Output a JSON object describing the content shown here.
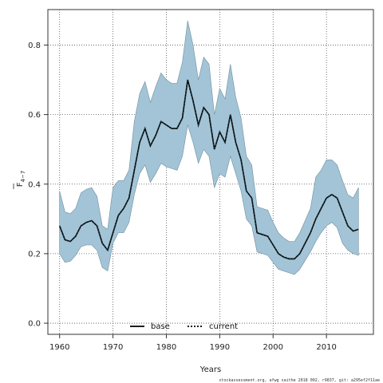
{
  "chart_data": {
    "type": "area",
    "xlabel": "Years",
    "ylabel": "F̄4−7",
    "ylabel_main": "F",
    "ylabel_sub": "4−7",
    "xlim": [
      1957.8,
      2018.8
    ],
    "ylim": [
      -0.032,
      0.902
    ],
    "xticks": [
      1960,
      1970,
      1980,
      1990,
      2000,
      2010
    ],
    "yticks": [
      0.0,
      0.2,
      0.4,
      0.6,
      0.8
    ],
    "ytick_labels": [
      "0.0",
      "0.2",
      "0.4",
      "0.6",
      "0.8"
    ],
    "grid": true,
    "legend_position": "bottom-center",
    "footer": "stockassessment.org, afwg saithe 2018 002, r9837, git: a295ef2f11ae",
    "colors": {
      "band": "#a2c4d6",
      "band_edge": "#6f8f9f",
      "line": "#000000"
    },
    "x": [
      1960,
      1961,
      1962,
      1963,
      1964,
      1965,
      1966,
      1967,
      1968,
      1969,
      1970,
      1971,
      1972,
      1973,
      1974,
      1975,
      1976,
      1977,
      1978,
      1979,
      1980,
      1981,
      1982,
      1983,
      1984,
      1985,
      1986,
      1987,
      1988,
      1989,
      1990,
      1991,
      1992,
      1993,
      1994,
      1995,
      1996,
      1997,
      1998,
      1999,
      2000,
      2001,
      2002,
      2003,
      2004,
      2005,
      2006,
      2007,
      2008,
      2009,
      2010,
      2011,
      2012,
      2013,
      2014,
      2015,
      2016
    ],
    "series": [
      {
        "name": "base",
        "style": "solid",
        "values": [
          0.28,
          0.24,
          0.235,
          0.25,
          0.28,
          0.29,
          0.295,
          0.28,
          0.23,
          0.21,
          0.26,
          0.31,
          0.33,
          0.36,
          0.44,
          0.52,
          0.56,
          0.51,
          0.54,
          0.58,
          0.57,
          0.56,
          0.56,
          0.59,
          0.7,
          0.64,
          0.57,
          0.62,
          0.6,
          0.5,
          0.55,
          0.52,
          0.6,
          0.52,
          0.47,
          0.38,
          0.36,
          0.26,
          0.255,
          0.25,
          0.225,
          0.2,
          0.19,
          0.185,
          0.185,
          0.2,
          0.23,
          0.26,
          0.3,
          0.33,
          0.36,
          0.37,
          0.36,
          0.32,
          0.28,
          0.265,
          0.27
        ]
      },
      {
        "name": "current",
        "style": "dotted",
        "values": [
          0.28,
          0.24,
          0.235,
          0.25,
          0.28,
          0.29,
          0.295,
          0.28,
          0.23,
          0.21,
          0.26,
          0.31,
          0.33,
          0.36,
          0.44,
          0.52,
          0.56,
          0.51,
          0.54,
          0.58,
          0.57,
          0.56,
          0.56,
          0.59,
          0.7,
          0.64,
          0.57,
          0.62,
          0.6,
          0.5,
          0.55,
          0.52,
          0.6,
          0.52,
          0.47,
          0.38,
          0.36,
          0.26,
          0.255,
          0.25,
          0.225,
          0.2,
          0.19,
          0.185,
          0.185,
          0.2,
          0.23,
          0.26,
          0.3,
          0.33,
          0.36,
          0.37,
          0.36,
          0.32,
          0.28,
          0.265,
          0.27
        ]
      }
    ],
    "band": {
      "lower": [
        0.2,
        0.175,
        0.178,
        0.195,
        0.22,
        0.225,
        0.225,
        0.21,
        0.16,
        0.15,
        0.23,
        0.26,
        0.26,
        0.29,
        0.37,
        0.43,
        0.455,
        0.405,
        0.43,
        0.46,
        0.45,
        0.445,
        0.44,
        0.48,
        0.57,
        0.52,
        0.46,
        0.5,
        0.48,
        0.39,
        0.43,
        0.42,
        0.48,
        0.43,
        0.38,
        0.3,
        0.28,
        0.205,
        0.2,
        0.195,
        0.175,
        0.155,
        0.15,
        0.145,
        0.14,
        0.155,
        0.18,
        0.205,
        0.235,
        0.26,
        0.28,
        0.29,
        0.275,
        0.23,
        0.21,
        0.2,
        0.195
      ],
      "upper": [
        0.38,
        0.32,
        0.315,
        0.33,
        0.375,
        0.385,
        0.39,
        0.365,
        0.28,
        0.27,
        0.39,
        0.41,
        0.41,
        0.44,
        0.58,
        0.66,
        0.695,
        0.635,
        0.68,
        0.72,
        0.7,
        0.69,
        0.69,
        0.75,
        0.87,
        0.8,
        0.7,
        0.765,
        0.745,
        0.6,
        0.675,
        0.645,
        0.745,
        0.65,
        0.59,
        0.48,
        0.455,
        0.335,
        0.33,
        0.325,
        0.29,
        0.26,
        0.245,
        0.235,
        0.235,
        0.26,
        0.295,
        0.33,
        0.42,
        0.44,
        0.47,
        0.47,
        0.455,
        0.41,
        0.37,
        0.36,
        0.39
      ]
    }
  }
}
